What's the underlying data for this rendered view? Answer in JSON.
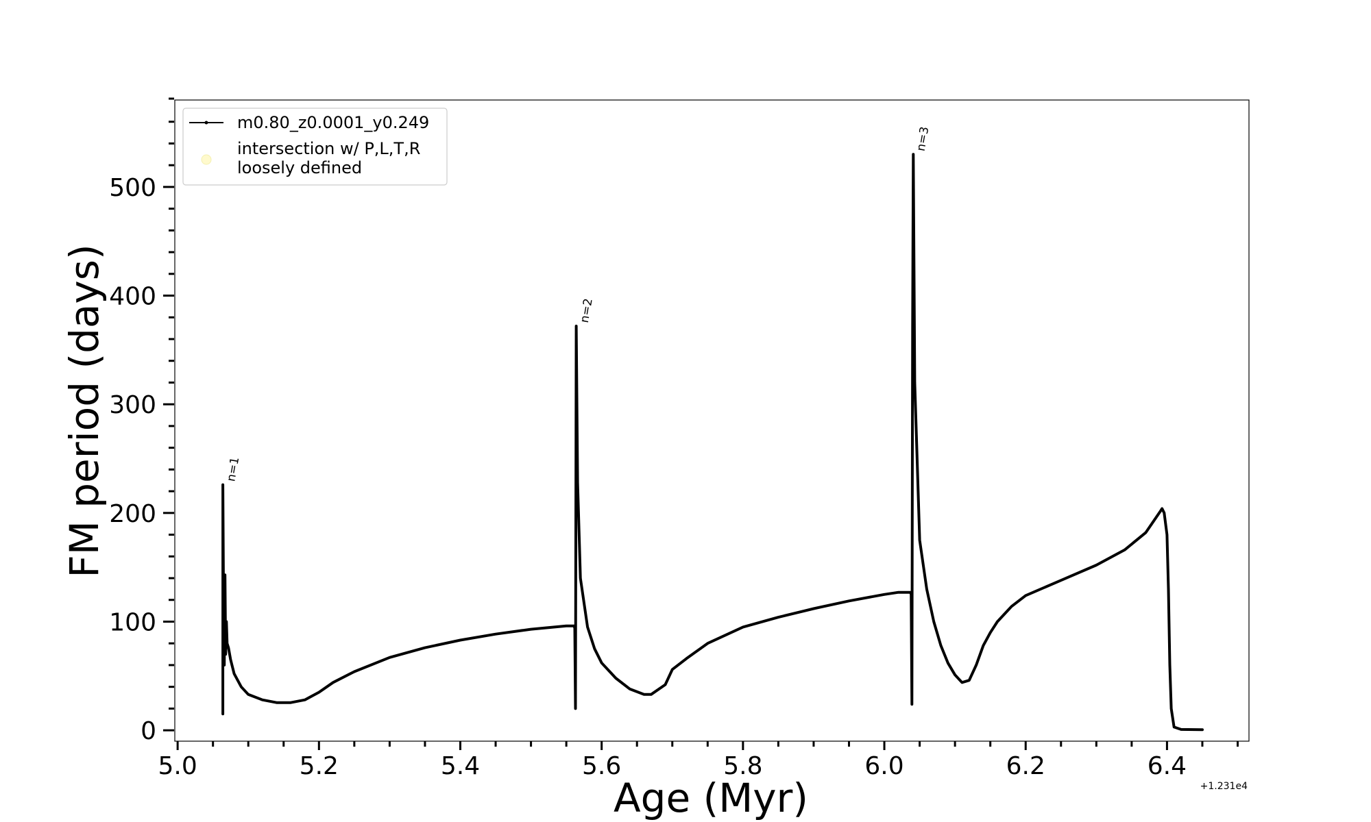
{
  "chart_data": {
    "type": "line",
    "title": "",
    "xlabel": "Age (Myr)",
    "ylabel": "FM period (days)",
    "x_offset_label": "+1.231e4",
    "xlim": [
      4.996,
      6.516
    ],
    "ylim": [
      -10,
      580
    ],
    "x_major_ticks": [
      5.0,
      5.2,
      5.4,
      5.6,
      5.8,
      6.0,
      6.2,
      6.4
    ],
    "x_tick_labels": [
      "5.0",
      "5.2",
      "5.4",
      "5.6",
      "5.8",
      "6.0",
      "6.2",
      "6.4"
    ],
    "y_major_ticks": [
      0,
      100,
      200,
      300,
      400,
      500
    ],
    "y_tick_labels": [
      "0",
      "100",
      "200",
      "300",
      "400",
      "500"
    ],
    "grid": false,
    "legend_placement": "top-left",
    "legend": [
      {
        "label": "m0.80_z0.0001_y0.249",
        "marker": "line-dot",
        "color": "#000000"
      },
      {
        "label": "intersection w/ P,L,T,R\nloosely defined",
        "marker": "circle",
        "color": "#fffacd"
      }
    ],
    "annotations": [
      {
        "text": "n=1",
        "x": 5.065,
        "y": 226
      },
      {
        "text": "n=2",
        "x": 5.565,
        "y": 372
      },
      {
        "text": "n=3",
        "x": 6.041,
        "y": 530
      }
    ],
    "series": [
      {
        "name": "m0.80_z0.0001_y0.249",
        "color": "#000000",
        "points": [
          [
            5.064,
            65
          ],
          [
            5.064,
            15
          ],
          [
            5.064,
            226
          ],
          [
            5.065,
            120
          ],
          [
            5.066,
            60
          ],
          [
            5.067,
            143
          ],
          [
            5.068,
            70
          ],
          [
            5.069,
            100
          ],
          [
            5.07,
            80
          ],
          [
            5.072,
            76
          ],
          [
            5.075,
            65
          ],
          [
            5.08,
            52
          ],
          [
            5.09,
            40
          ],
          [
            5.1,
            33
          ],
          [
            5.12,
            28
          ],
          [
            5.14,
            25.5
          ],
          [
            5.16,
            25.5
          ],
          [
            5.18,
            28
          ],
          [
            5.2,
            35
          ],
          [
            5.22,
            44
          ],
          [
            5.25,
            54
          ],
          [
            5.3,
            67
          ],
          [
            5.35,
            76
          ],
          [
            5.4,
            83
          ],
          [
            5.45,
            88.5
          ],
          [
            5.5,
            93
          ],
          [
            5.55,
            96
          ],
          [
            5.561,
            96
          ],
          [
            5.562,
            94
          ],
          [
            5.563,
            20
          ],
          [
            5.564,
            372
          ],
          [
            5.566,
            228
          ],
          [
            5.57,
            140
          ],
          [
            5.58,
            95
          ],
          [
            5.59,
            75
          ],
          [
            5.6,
            62
          ],
          [
            5.62,
            48
          ],
          [
            5.64,
            38
          ],
          [
            5.66,
            33
          ],
          [
            5.67,
            33
          ],
          [
            5.69,
            42
          ],
          [
            5.7,
            56
          ],
          [
            5.72,
            66
          ],
          [
            5.75,
            80
          ],
          [
            5.8,
            95
          ],
          [
            5.85,
            104
          ],
          [
            5.9,
            112
          ],
          [
            5.95,
            119
          ],
          [
            6.0,
            125
          ],
          [
            6.02,
            127
          ],
          [
            6.037,
            127
          ],
          [
            6.038,
            125
          ],
          [
            6.039,
            24
          ],
          [
            6.04,
            370
          ],
          [
            6.041,
            530
          ],
          [
            6.043,
            320
          ],
          [
            6.05,
            175
          ],
          [
            6.06,
            130
          ],
          [
            6.07,
            100
          ],
          [
            6.08,
            78
          ],
          [
            6.09,
            62
          ],
          [
            6.1,
            51
          ],
          [
            6.11,
            44
          ],
          [
            6.12,
            46
          ],
          [
            6.13,
            60
          ],
          [
            6.14,
            78
          ],
          [
            6.15,
            90
          ],
          [
            6.16,
            100
          ],
          [
            6.18,
            114
          ],
          [
            6.2,
            124
          ],
          [
            6.25,
            138
          ],
          [
            6.3,
            152
          ],
          [
            6.34,
            166
          ],
          [
            6.37,
            182
          ],
          [
            6.39,
            201
          ],
          [
            6.393,
            204
          ],
          [
            6.396,
            200
          ],
          [
            6.4,
            180
          ],
          [
            6.402,
            130
          ],
          [
            6.404,
            60
          ],
          [
            6.406,
            20
          ],
          [
            6.41,
            3
          ],
          [
            6.42,
            0.8
          ],
          [
            6.45,
            0.6
          ]
        ]
      }
    ]
  }
}
